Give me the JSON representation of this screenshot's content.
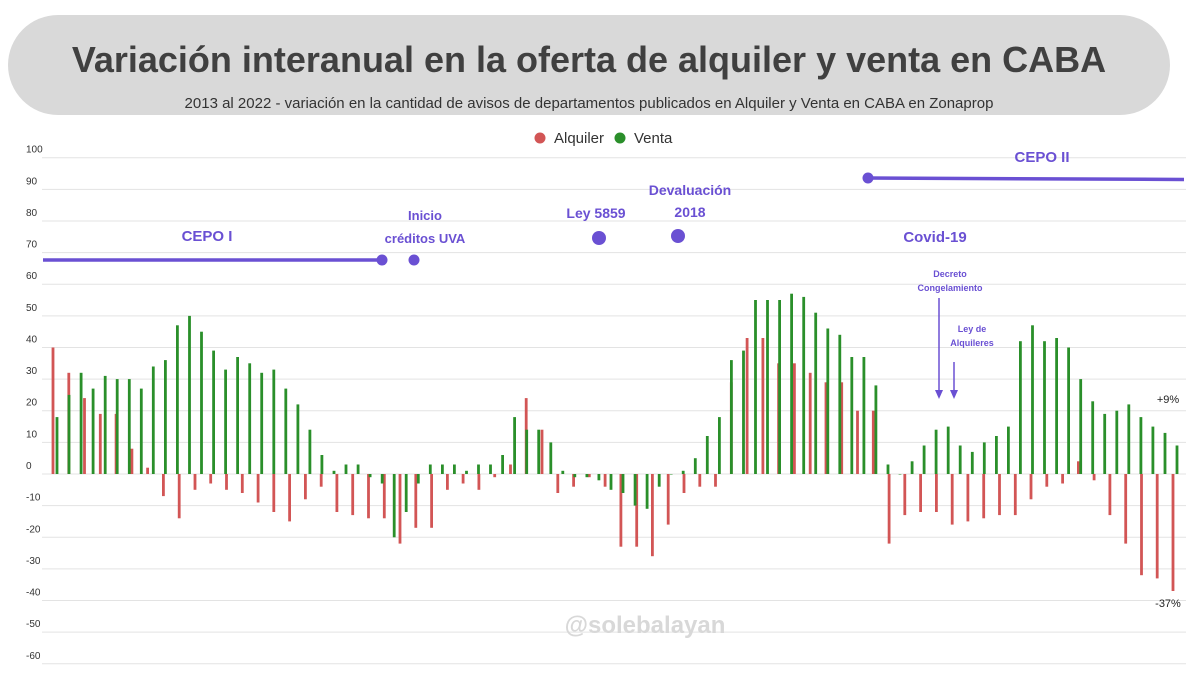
{
  "header": {
    "title": "Variación interanual en la oferta de alquiler y venta en CABA",
    "subtitle": "2013 al 2022 - variación en la cantidad de avisos de departamentos publicados en Alquiler y Venta en CABA en Zonaprop"
  },
  "watermark": "@solebalayan",
  "colors": {
    "alquiler": "#d25555",
    "venta": "#2a8f2a",
    "annotation": "#6a50d3"
  },
  "chart_data": {
    "type": "bar",
    "ylim": [
      -60,
      100
    ],
    "yticks": [
      "100",
      "90",
      "80",
      "70",
      "60",
      "50",
      "40",
      "30",
      "20",
      "10",
      "0",
      "-10",
      "-20",
      "-30",
      "-40",
      "-50",
      "-60"
    ],
    "legend": {
      "position": "top-center"
    },
    "grid": true,
    "series": [
      {
        "name": "Alquiler",
        "values": [
          40,
          32,
          24,
          19,
          19,
          8,
          2,
          -7,
          -14,
          -5,
          -3,
          -5,
          -6,
          -9,
          -12,
          -15,
          -8,
          -4,
          -12,
          -13,
          -14,
          -14,
          -22,
          -17,
          -17,
          -5,
          -3,
          -5,
          -1,
          3,
          24,
          14,
          -6,
          -4,
          -1,
          -4,
          -23,
          -23,
          -26,
          -16,
          -6,
          -4,
          -4,
          29,
          43,
          43,
          35,
          35,
          32,
          29,
          29,
          20,
          20,
          -22,
          -13,
          -12,
          -12,
          -16,
          -15,
          -14,
          -13,
          -13,
          -8,
          -4,
          -3,
          4,
          -2,
          -13,
          -22,
          -32,
          -33,
          -37
        ]
      },
      {
        "name": "Venta",
        "values": [
          18,
          25,
          32,
          27,
          31,
          30,
          30,
          27,
          34,
          36,
          47,
          50,
          45,
          39,
          33,
          37,
          35,
          32,
          33,
          27,
          22,
          14,
          6,
          1,
          3,
          3,
          -1,
          -3,
          -20,
          -12,
          -3,
          3,
          3,
          3,
          1,
          3,
          3,
          6,
          18,
          14,
          14,
          10,
          1,
          -1,
          -1,
          -2,
          -5,
          -6,
          -10,
          -11,
          -4,
          0,
          1,
          5,
          12,
          18,
          36,
          39,
          55,
          55,
          55,
          57,
          56,
          51,
          46,
          44,
          37,
          37,
          28,
          3,
          0,
          4,
          9,
          14,
          15,
          9,
          7,
          10,
          12,
          15,
          42,
          47,
          42,
          43,
          40,
          30,
          23,
          19,
          20,
          22,
          18,
          15,
          13,
          9
        ]
      }
    ],
    "annotations": [
      {
        "label": "CEPO I"
      },
      {
        "label": "Inicio"
      },
      {
        "label": "créditos UVA"
      },
      {
        "label": "Ley 5859"
      },
      {
        "label": "Devaluación"
      },
      {
        "label": "2018"
      },
      {
        "label": "CEPO II"
      },
      {
        "label": "Covid-19"
      },
      {
        "label": "Decreto"
      },
      {
        "label": "Congelamiento"
      },
      {
        "label": "Ley de"
      },
      {
        "label": "Alquileres"
      }
    ],
    "end_labels": {
      "venta": "+9%",
      "alquiler": "-37%"
    }
  }
}
